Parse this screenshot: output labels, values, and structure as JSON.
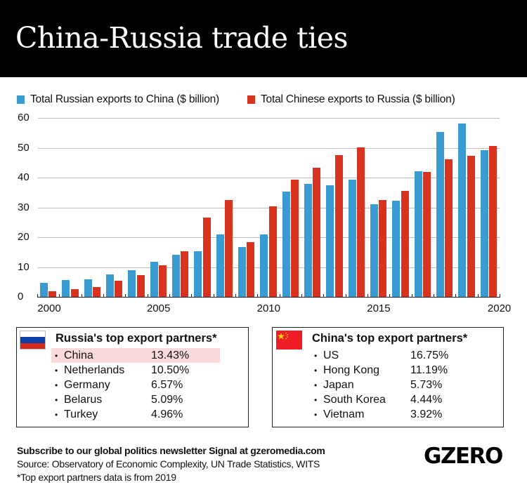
{
  "header": {
    "title": "China-Russia trade ties"
  },
  "colors": {
    "russia_exports": "#3a9bd2",
    "china_exports": "#d9321f",
    "highlight": "#fadadb",
    "header_bg": "#000000"
  },
  "legend": [
    {
      "label": "Total Russian exports to China ($ billion)",
      "color": "#3a9bd2"
    },
    {
      "label": "Total Chinese exports to Russia ($ billion)",
      "color": "#d9321f"
    }
  ],
  "chart_data": {
    "type": "bar",
    "title": "China-Russia trade ties",
    "xlabel": "",
    "ylabel": "$ billion",
    "ylim": [
      0,
      60
    ],
    "yticks": [
      0,
      10,
      20,
      30,
      40,
      50,
      60
    ],
    "xtick_labels": [
      "2000",
      "2005",
      "2010",
      "2015",
      "2020"
    ],
    "grid": true,
    "legend_position": "top-left",
    "categories": [
      "2000",
      "2001",
      "2002",
      "2003",
      "2004",
      "2005",
      "2006",
      "2007",
      "2008",
      "2009",
      "2010",
      "2011",
      "2012",
      "2013",
      "2014",
      "2015",
      "2016",
      "2017",
      "2018",
      "2019",
      "2020"
    ],
    "series": [
      {
        "name": "Total Russian exports to China ($ billion)",
        "color": "#3a9bd2",
        "values": [
          4.6,
          5.6,
          5.8,
          7.5,
          8.9,
          11.7,
          14.1,
          15.4,
          21.0,
          16.7,
          21.0,
          35.3,
          38.0,
          37.5,
          39.4,
          31.1,
          32.3,
          42.2,
          55.4,
          58.2,
          49.2
        ]
      },
      {
        "name": "Total Chinese exports to Russia ($ billion)",
        "color": "#d9321f",
        "values": [
          2.0,
          2.5,
          3.4,
          5.3,
          7.4,
          10.5,
          15.2,
          26.6,
          32.5,
          18.3,
          30.3,
          39.4,
          43.3,
          47.6,
          50.1,
          32.4,
          35.6,
          41.9,
          46.2,
          47.3,
          50.6
        ]
      }
    ]
  },
  "panels": {
    "russia": {
      "title": "Russia's top export partners*",
      "flag": "russia-flag",
      "rows": [
        {
          "country": "China",
          "pct": "13.43%",
          "highlight": true
        },
        {
          "country": "Netherlands",
          "pct": "10.50%"
        },
        {
          "country": "Germany",
          "pct": "6.57%"
        },
        {
          "country": "Belarus",
          "pct": "5.09%"
        },
        {
          "country": "Turkey",
          "pct": "4.96%"
        }
      ]
    },
    "china": {
      "title": "China's top export partners*",
      "flag": "china-flag",
      "rows": [
        {
          "country": "US",
          "pct": "16.75%"
        },
        {
          "country": "Hong Kong",
          "pct": "11.19%"
        },
        {
          "country": "Japan",
          "pct": "5.73%"
        },
        {
          "country": "South Korea",
          "pct": "4.44%"
        },
        {
          "country": "Vietnam",
          "pct": "3.92%"
        }
      ]
    }
  },
  "bullet": "•",
  "footer": {
    "subscribe": "Subscribe to our global politics newsletter Signal at gzeromedia.com",
    "source": "Source: Observatory of Economic Complexity, UN Trade Statistics, WITS",
    "note": "*Top export partners data is from 2019",
    "logo": "GZERO"
  }
}
